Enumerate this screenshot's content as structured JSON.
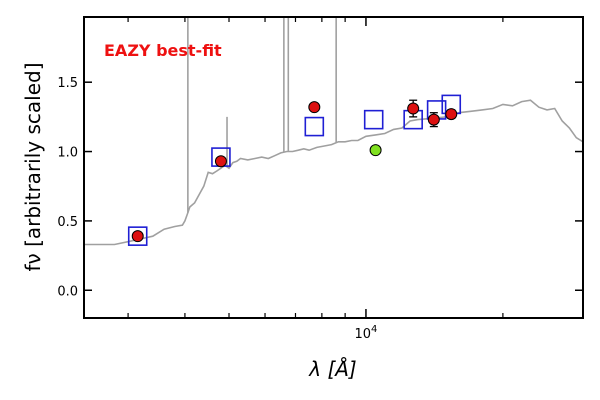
{
  "chart_data": {
    "type": "scatter",
    "title": "",
    "annotation": "EAZY best-fit",
    "xlabel": "λ [Å]",
    "ylabel": "fν [arbitrarily scaled]",
    "xscale": "log",
    "xlim": [
      2400,
      30000
    ],
    "ylim": [
      -0.2,
      1.97
    ],
    "y_ticks": [
      {
        "value": 0.0,
        "label": "0.0"
      },
      {
        "value": 0.5,
        "label": "0.5"
      },
      {
        "value": 1.0,
        "label": "1.0"
      },
      {
        "value": 1.5,
        "label": "1.5"
      }
    ],
    "x_ticks": [
      {
        "value": 10000,
        "label": "10^4"
      }
    ],
    "x_minor_ticks": [
      3000,
      4000,
      5000,
      6000,
      7000,
      8000,
      9000,
      20000
    ],
    "colors": {
      "sed": "#a0a0a0",
      "model_marker": "#1f1fd4",
      "observed": "#dd1111",
      "observed_green": "#80e020",
      "annotation": "#ee1111"
    },
    "series": [
      {
        "kind": "sed-line",
        "x": [
          2400,
          2600,
          2800,
          3000,
          3200,
          3400,
          3600,
          3800,
          3950,
          4000,
          4050,
          4100,
          4200,
          4300,
          4400,
          4500,
          4600,
          4700,
          4800,
          4900,
          5000,
          5100,
          5200,
          5300,
          5500,
          5700,
          5900,
          6100,
          6300,
          6500,
          6700,
          6900,
          7100,
          7300,
          7500,
          7800,
          8100,
          8400,
          8700,
          9000,
          9300,
          9600,
          10000,
          10500,
          11000,
          11500,
          12000,
          12500,
          13000,
          14000,
          15000,
          16000,
          17000,
          18000,
          19000,
          20000,
          21000,
          22000,
          23000,
          24000,
          25000,
          26000,
          27000,
          28000,
          29000,
          30000
        ],
        "y": [
          0.33,
          0.33,
          0.33,
          0.35,
          0.37,
          0.39,
          0.44,
          0.46,
          0.47,
          0.5,
          0.55,
          0.6,
          0.63,
          0.69,
          0.75,
          0.85,
          0.84,
          0.86,
          0.88,
          0.9,
          0.88,
          0.92,
          0.93,
          0.95,
          0.94,
          0.95,
          0.96,
          0.95,
          0.97,
          0.99,
          1.0,
          1.0,
          1.01,
          1.02,
          1.01,
          1.03,
          1.04,
          1.05,
          1.07,
          1.07,
          1.08,
          1.08,
          1.11,
          1.12,
          1.13,
          1.16,
          1.17,
          1.22,
          1.23,
          1.24,
          1.25,
          1.28,
          1.29,
          1.3,
          1.31,
          1.34,
          1.33,
          1.36,
          1.37,
          1.32,
          1.3,
          1.31,
          1.22,
          1.17,
          1.1,
          1.07
        ]
      },
      {
        "kind": "sed-emission-lines",
        "lines": [
          {
            "x": 4060,
            "y_top": 2.05
          },
          {
            "x": 4950,
            "y_top": 1.25
          },
          {
            "x": 6600,
            "y_top": 2.05
          },
          {
            "x": 6750,
            "y_top": 2.05
          },
          {
            "x": 8600,
            "y_top": 2.05
          }
        ]
      },
      {
        "kind": "model-squares",
        "x": [
          3150,
          4800,
          7700,
          10400,
          12700,
          14300,
          15400
        ],
        "y": [
          0.39,
          0.96,
          1.18,
          1.23,
          1.23,
          1.3,
          1.34
        ]
      },
      {
        "kind": "observed-points",
        "x": [
          3150,
          4800,
          7700,
          12700,
          14100,
          15400
        ],
        "y": [
          0.39,
          0.93,
          1.32,
          1.31,
          1.23,
          1.27
        ],
        "yerr": [
          0.0,
          0.0,
          0.0,
          0.06,
          0.05,
          0.03
        ]
      },
      {
        "kind": "observed-point-green",
        "x": [
          10500
        ],
        "y": [
          1.01
        ]
      }
    ]
  }
}
